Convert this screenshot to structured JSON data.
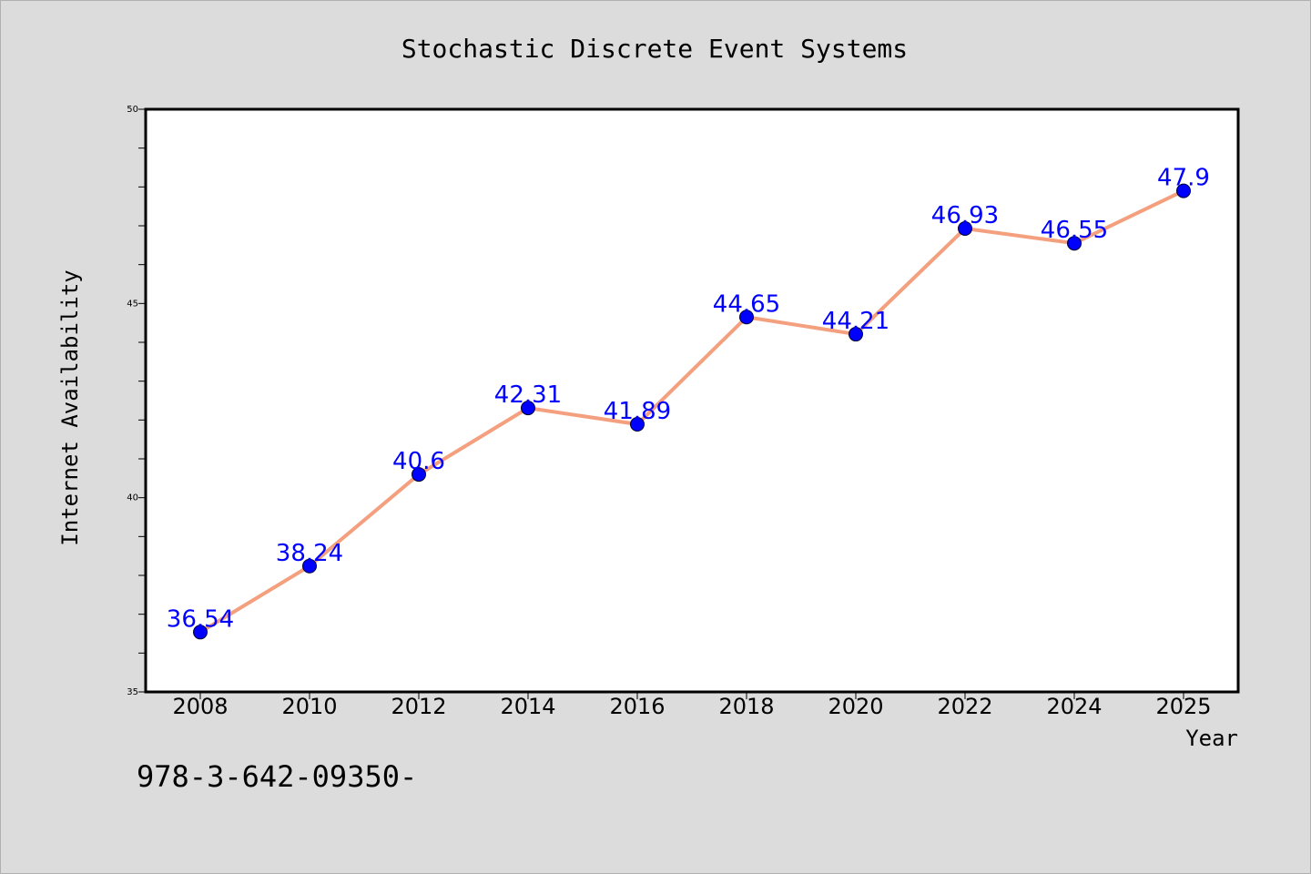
{
  "chart_data": {
    "type": "line",
    "title": "Stochastic Discrete Event Systems",
    "xlabel": "Year",
    "ylabel": "Internet Availability",
    "categories": [
      "2008",
      "2010",
      "2012",
      "2014",
      "2016",
      "2018",
      "2020",
      "2022",
      "2024",
      "2025"
    ],
    "series": [
      {
        "values": [
          36.54,
          38.24,
          40.6,
          42.31,
          41.89,
          44.65,
          44.21,
          46.93,
          46.55,
          47.9
        ],
        "labels": [
          "36.54",
          "38.24",
          "40.6",
          "42.31",
          "41.89",
          "44.65",
          "44.21",
          "46.93",
          "46.55",
          "47.9"
        ],
        "line_color": "#f4a07f",
        "marker_color": "#0000ff",
        "label_color": "#0000ff"
      }
    ],
    "ylim": [
      35,
      50
    ],
    "yticks": [
      "35",
      "40",
      "45",
      "50"
    ],
    "grid": false,
    "legend": "none"
  },
  "footer_text": "978-3-642-09350-"
}
